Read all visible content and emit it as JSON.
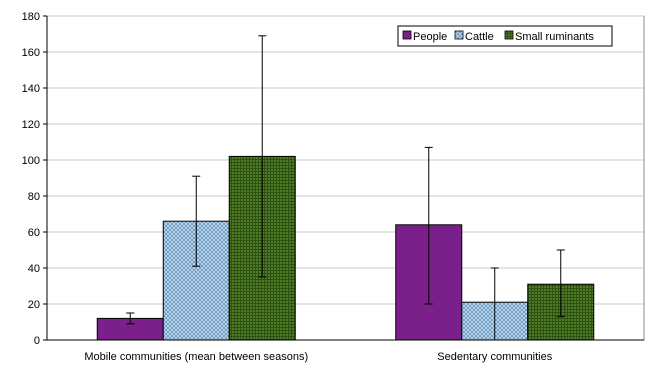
{
  "chart_data": {
    "type": "bar",
    "title": "",
    "xlabel": "",
    "ylabel": "",
    "ylim": [
      0,
      180
    ],
    "yticks": [
      0,
      20,
      40,
      60,
      80,
      100,
      120,
      140,
      160,
      180
    ],
    "grid": true,
    "legend_position": "top-right",
    "categories": [
      "Mobile communities (mean between seasons)",
      "Sedentary communities"
    ],
    "series": [
      {
        "name": "People",
        "color": "#7b1f8a",
        "pattern": "solid",
        "values": [
          12,
          64
        ],
        "error_low": [
          9,
          20
        ],
        "error_high": [
          15,
          107
        ]
      },
      {
        "name": "Cattle",
        "color": "#9fc3e0",
        "pattern": "crosshatch",
        "values": [
          66,
          21
        ],
        "error_low": [
          41,
          0
        ],
        "error_high": [
          91,
          40
        ]
      },
      {
        "name": "Small ruminants",
        "color": "#3f6b1e",
        "pattern": "grid",
        "values": [
          102,
          31
        ],
        "error_low": [
          35,
          13
        ],
        "error_high": [
          169,
          50
        ]
      }
    ]
  }
}
